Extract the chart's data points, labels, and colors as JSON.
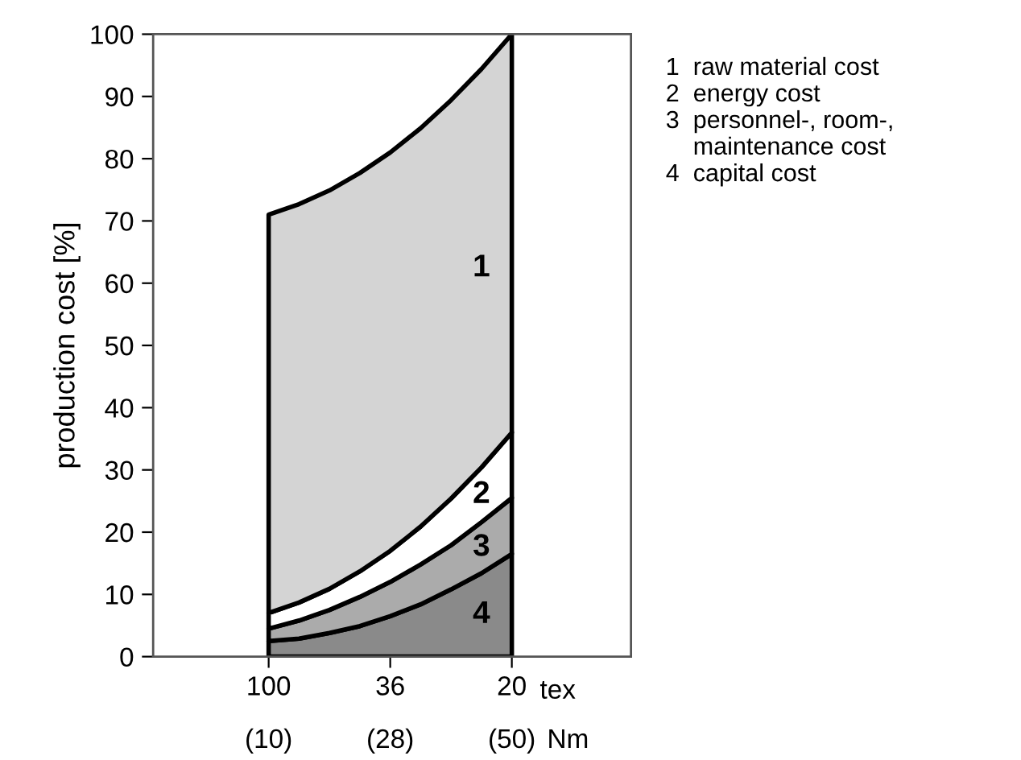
{
  "chart_data": {
    "type": "area",
    "stacked": true,
    "ylabel": "production cost [%]",
    "categories": [
      "100",
      null,
      null,
      null,
      "36",
      null,
      null,
      null,
      "20"
    ],
    "series": [
      {
        "name": "4",
        "color": "#8a8a8a",
        "values": [
          2.5,
          2.9,
          3.8,
          4.9,
          6.5,
          8.4,
          10.8,
          13.4,
          16.5
        ]
      },
      {
        "name": "3",
        "color": "#ababab",
        "values": [
          2,
          2.9,
          3.7,
          4.7,
          5.5,
          6.4,
          7.1,
          8.2,
          9
        ]
      },
      {
        "name": "2",
        "color": "#ffffff",
        "values": [
          2.5,
          2.9,
          3.4,
          4.1,
          5,
          6.1,
          7.5,
          8.8,
          10.5
        ]
      },
      {
        "name": "1",
        "color": "#d4d4d4",
        "values": [
          64,
          64,
          64,
          64,
          64,
          64,
          64,
          64,
          64
        ]
      }
    ],
    "ylim": [
      0,
      100
    ],
    "yticks": [
      0,
      10,
      20,
      30,
      40,
      50,
      60,
      70,
      80,
      90,
      100
    ],
    "grid": false,
    "legend": false,
    "annotations": [
      "1  raw material cost",
      "2  energy cost",
      "3  personnel-, room-,\n    maintenance cost",
      "4  capital cost",
      "tex",
      "(10)",
      "(28)",
      "(50)",
      "Nm"
    ]
  }
}
